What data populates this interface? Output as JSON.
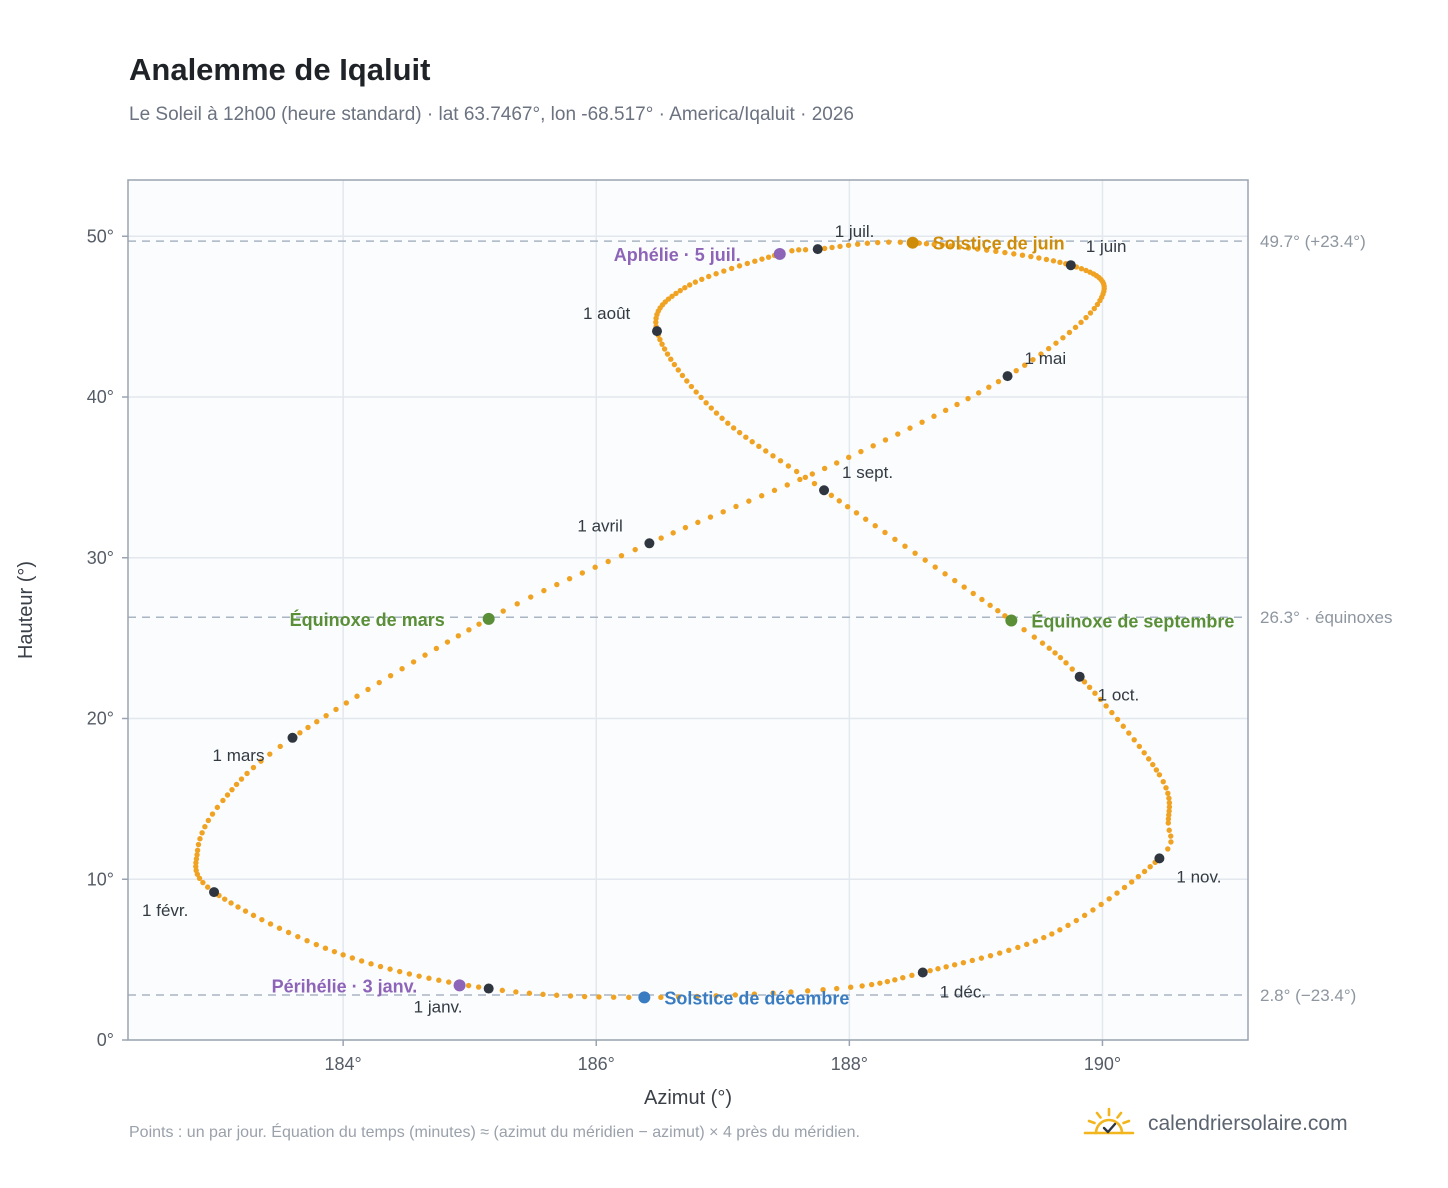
{
  "header": {
    "title": "Analemme de Iqaluit",
    "subtitle": "Le Soleil à 12h00 (heure standard) · lat 63.7467°, lon -68.517° · America/Iqaluit · 2026"
  },
  "footer": {
    "note": "Points : un par jour. Équation du temps (minutes) ≈ (azimut du méridien − azimut) × 4 près du méridien.",
    "brand": "calendriersolaire.com"
  },
  "colors": {
    "path": "#f0a323",
    "month": "#2f3640",
    "equinox": "#5a8f38",
    "june": "#cf8c08",
    "december": "#3a7cc1",
    "perihelion": "#8e64b8",
    "grid": "#e3e8ee",
    "plot_bg": "#fafcfe",
    "frame": "#9aa4b1",
    "ref_line": "#a9b5c2"
  },
  "chart_data": {
    "type": "scatter",
    "xlabel": "Azimut (°)",
    "ylabel": "Hauteur (°)",
    "xlim": [
      182.3,
      191.15
    ],
    "ylim": [
      0,
      53.5
    ],
    "xticks": [
      184,
      186,
      188,
      190
    ],
    "xtick_labels": [
      "184°",
      "186°",
      "188°",
      "190°"
    ],
    "yticks": [
      0,
      10,
      20,
      30,
      40,
      50
    ],
    "ytick_labels": [
      "0°",
      "10°",
      "20°",
      "30°",
      "40°",
      "50°"
    ],
    "grid": true,
    "path_anchors": [
      {
        "day": 1,
        "x": 185.15,
        "y": 3.2
      },
      {
        "day": 16,
        "x": 184.0,
        "y": 5.3
      },
      {
        "day": 32,
        "x": 182.98,
        "y": 9.2
      },
      {
        "day": 42,
        "x": 182.85,
        "y": 11.8
      },
      {
        "day": 50,
        "x": 183.05,
        "y": 14.9
      },
      {
        "day": 60,
        "x": 183.6,
        "y": 18.8
      },
      {
        "day": 79,
        "x": 185.15,
        "y": 26.2
      },
      {
        "day": 91,
        "x": 186.42,
        "y": 30.9
      },
      {
        "day": 106,
        "x": 187.9,
        "y": 35.9
      },
      {
        "day": 121,
        "x": 189.25,
        "y": 41.3
      },
      {
        "day": 136,
        "x": 189.98,
        "y": 46.0
      },
      {
        "day": 152,
        "x": 189.75,
        "y": 48.2
      },
      {
        "day": 172,
        "x": 188.5,
        "y": 49.6
      },
      {
        "day": 182,
        "x": 187.75,
        "y": 49.2
      },
      {
        "day": 186,
        "x": 187.45,
        "y": 48.9
      },
      {
        "day": 200,
        "x": 186.7,
        "y": 46.8
      },
      {
        "day": 213,
        "x": 186.48,
        "y": 44.1
      },
      {
        "day": 229,
        "x": 186.95,
        "y": 39.0
      },
      {
        "day": 244,
        "x": 187.8,
        "y": 34.2
      },
      {
        "day": 265,
        "x": 189.28,
        "y": 26.1
      },
      {
        "day": 274,
        "x": 189.82,
        "y": 22.6
      },
      {
        "day": 290,
        "x": 190.45,
        "y": 16.5
      },
      {
        "day": 300,
        "x": 190.52,
        "y": 13.5
      },
      {
        "day": 305,
        "x": 190.45,
        "y": 11.3
      },
      {
        "day": 320,
        "x": 189.6,
        "y": 6.6
      },
      {
        "day": 335,
        "x": 188.58,
        "y": 4.2
      },
      {
        "day": 344,
        "x": 187.9,
        "y": 3.2
      },
      {
        "day": 355,
        "x": 186.38,
        "y": 2.65
      },
      {
        "day": 366,
        "x": 185.15,
        "y": 3.2
      }
    ],
    "months": [
      {
        "label": "1 janv.",
        "x": 185.15,
        "y": 3.2,
        "dx": -75,
        "dy": 24
      },
      {
        "label": "1 févr.",
        "x": 182.98,
        "y": 9.2,
        "dx": -72,
        "dy": 24
      },
      {
        "label": "1 mars",
        "x": 183.6,
        "y": 18.8,
        "dx": -80,
        "dy": 23
      },
      {
        "label": "1 avril",
        "x": 186.42,
        "y": 30.9,
        "dx": -72,
        "dy": -12
      },
      {
        "label": "1 mai",
        "x": 189.25,
        "y": 41.3,
        "dx": 17,
        "dy": -12
      },
      {
        "label": "1 juin",
        "x": 189.75,
        "y": 48.2,
        "dx": 15,
        "dy": -13
      },
      {
        "label": "1 juil.",
        "x": 187.75,
        "y": 49.2,
        "dx": 17,
        "dy": -12
      },
      {
        "label": "1 août",
        "x": 186.48,
        "y": 44.1,
        "dx": -74,
        "dy": -12
      },
      {
        "label": "1 sept.",
        "x": 187.8,
        "y": 34.2,
        "dx": 18,
        "dy": -12
      },
      {
        "label": "1 oct.",
        "x": 189.82,
        "y": 22.6,
        "dx": 18,
        "dy": 24
      },
      {
        "label": "1 nov.",
        "x": 190.45,
        "y": 11.3,
        "dx": 17,
        "dy": 24
      },
      {
        "label": "1 déc.",
        "x": 188.58,
        "y": 4.2,
        "dx": 17,
        "dy": 25
      }
    ],
    "events": [
      {
        "label": "Équinoxe de mars",
        "x": 185.15,
        "y": 26.2,
        "color": "#5a8f38",
        "dx": -199,
        "dy": 7
      },
      {
        "label": "Solstice de juin",
        "x": 188.5,
        "y": 49.6,
        "color": "#cf8c08",
        "dx": 20,
        "dy": 7
      },
      {
        "label": "Aphélie · 5 juil.",
        "x": 187.45,
        "y": 48.9,
        "color": "#8e64b8",
        "dx": -166,
        "dy": 7
      },
      {
        "label": "Équinoxe de septembre",
        "x": 189.28,
        "y": 26.1,
        "color": "#5a8f38",
        "dx": 20,
        "dy": 7
      },
      {
        "label": "Solstice de décembre",
        "x": 186.38,
        "y": 2.65,
        "color": "#3a7cc1",
        "dx": 20,
        "dy": 7
      },
      {
        "label": "Périhélie · 3 janv.",
        "x": 184.92,
        "y": 3.4,
        "color": "#8e64b8",
        "dx": -188,
        "dy": 7
      }
    ],
    "reference_lines": [
      {
        "y": 49.7,
        "label": "49.7° (+23.4°)"
      },
      {
        "y": 26.3,
        "label": "26.3° · équinoxes"
      },
      {
        "y": 2.8,
        "label": "2.8° (−23.4°)"
      }
    ]
  }
}
